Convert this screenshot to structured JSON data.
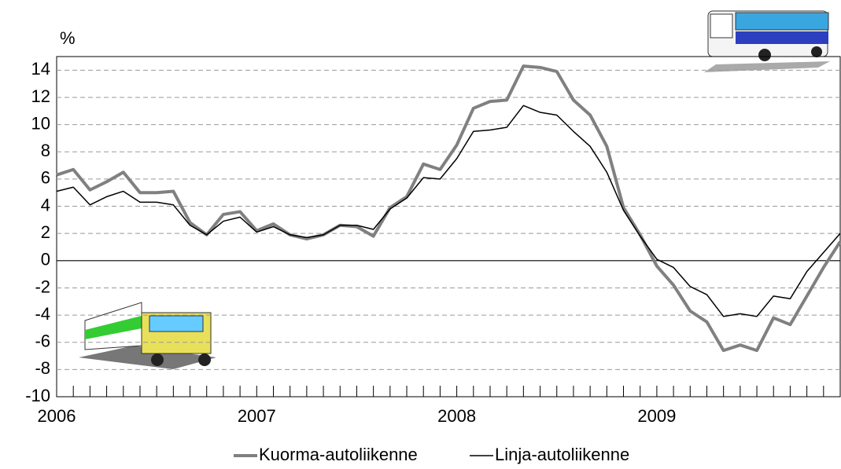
{
  "chart_data": {
    "type": "line",
    "y_label": "%",
    "categories": [
      "2006",
      null,
      null,
      null,
      null,
      null,
      null,
      null,
      null,
      null,
      null,
      null,
      "2007",
      null,
      null,
      null,
      null,
      null,
      null,
      null,
      null,
      null,
      null,
      null,
      "2008",
      null,
      null,
      null,
      null,
      null,
      null,
      null,
      null,
      null,
      null,
      null,
      "2009",
      null,
      null,
      null,
      null,
      null,
      null,
      null,
      null,
      null,
      null,
      null
    ],
    "series": [
      {
        "name": "Kuorma-autoliikenne",
        "color": "#808080",
        "values": [
          6.3,
          6.7,
          5.2,
          5.8,
          6.5,
          5.0,
          5.0,
          5.1,
          2.8,
          1.9,
          3.4,
          3.6,
          2.2,
          2.7,
          1.9,
          1.6,
          1.9,
          2.6,
          2.5,
          1.8,
          3.9,
          4.7,
          7.1,
          6.7,
          8.5,
          11.2,
          11.7,
          11.8,
          14.3,
          14.2,
          13.9,
          11.8,
          10.7,
          8.4,
          3.9,
          1.9,
          -0.4,
          -1.8,
          -3.7,
          -4.5,
          -6.6,
          -6.2,
          -6.6,
          -4.2,
          -4.7,
          -2.6,
          -0.5,
          1.4
        ]
      },
      {
        "name": "Linja-autoliikenne",
        "color": "#000000",
        "values": [
          5.1,
          5.4,
          4.1,
          4.7,
          5.1,
          4.3,
          4.3,
          4.1,
          2.6,
          1.9,
          2.9,
          3.2,
          2.1,
          2.5,
          1.9,
          1.7,
          1.9,
          2.6,
          2.6,
          2.3,
          3.8,
          4.6,
          6.1,
          6.0,
          7.5,
          9.5,
          9.6,
          9.8,
          11.4,
          10.9,
          10.7,
          9.5,
          8.4,
          6.5,
          3.7,
          1.8,
          0.1,
          -0.5,
          -1.9,
          -2.5,
          -4.1,
          -3.9,
          -4.1,
          -2.6,
          -2.8,
          -0.8,
          0.6,
          2.0
        ]
      }
    ],
    "ylim": [
      -10,
      15
    ],
    "yticks": [
      -10,
      -8,
      -6,
      -4,
      -2,
      0,
      2,
      4,
      6,
      8,
      10,
      12,
      14
    ],
    "grid": true
  }
}
